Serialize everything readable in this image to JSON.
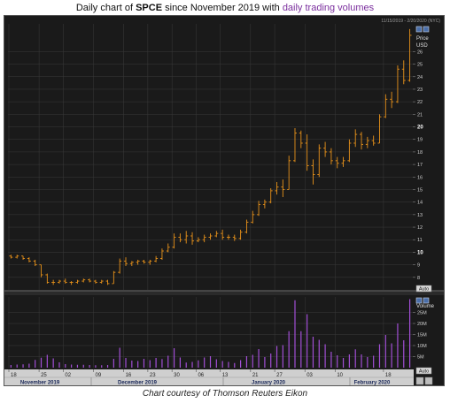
{
  "header": {
    "title_prefix": "Daily chart of",
    "ticker": "SPCE",
    "title_middle": "since November 2019 with",
    "title_volume": "daily trading volumes"
  },
  "date_range": "11/15/2019 - 2/20/2020 (NYC)",
  "price_label": "Price",
  "currency_label": "USD",
  "volume_label": "Volume",
  "auto_button": "Auto",
  "caption": "Chart courtesy of Thomson Reuters Eikon",
  "colors": {
    "price": "#e8921a",
    "volume": "#a24fd6",
    "background": "#1a1a1a",
    "grid": "#3a3a3a"
  },
  "chart_data": {
    "type": "bar",
    "price_axis": {
      "min": 7,
      "max": 28,
      "ticks": [
        8,
        9,
        10,
        11,
        12,
        13,
        14,
        15,
        16,
        17,
        18,
        19,
        20,
        21,
        22,
        23,
        24,
        25,
        26
      ],
      "bold_ticks": [
        10,
        20
      ]
    },
    "volume_axis": {
      "min": 0,
      "max": 32,
      "ticks": [
        "5M",
        "10M",
        "15M",
        "20M",
        "25M"
      ],
      "tick_values": [
        5,
        10,
        15,
        20,
        25
      ],
      "unit": "M"
    },
    "x_tick_labels": [
      "18",
      "25",
      "02",
      "09",
      "16",
      "23",
      "30",
      "06",
      "13",
      "21",
      "27",
      "03",
      "10",
      "18"
    ],
    "month_labels": [
      "November 2019",
      "December 2019",
      "January 2020",
      "February 2020"
    ],
    "ohlc": [
      {
        "o": 9.7,
        "h": 9.8,
        "l": 9.5,
        "c": 9.6
      },
      {
        "o": 9.6,
        "h": 9.8,
        "l": 9.5,
        "c": 9.7
      },
      {
        "o": 9.7,
        "h": 9.7,
        "l": 9.4,
        "c": 9.5
      },
      {
        "o": 9.5,
        "h": 9.6,
        "l": 9.2,
        "c": 9.3
      },
      {
        "o": 9.3,
        "h": 9.4,
        "l": 8.9,
        "c": 9.0
      },
      {
        "o": 9.0,
        "h": 9.0,
        "l": 8.0,
        "c": 8.2
      },
      {
        "o": 8.2,
        "h": 8.3,
        "l": 7.5,
        "c": 7.6
      },
      {
        "o": 7.6,
        "h": 7.8,
        "l": 7.4,
        "c": 7.6
      },
      {
        "o": 7.6,
        "h": 7.8,
        "l": 7.5,
        "c": 7.7
      },
      {
        "o": 7.7,
        "h": 7.9,
        "l": 7.5,
        "c": 7.6
      },
      {
        "o": 7.6,
        "h": 7.7,
        "l": 7.4,
        "c": 7.6
      },
      {
        "o": 7.6,
        "h": 7.8,
        "l": 7.5,
        "c": 7.7
      },
      {
        "o": 7.7,
        "h": 7.9,
        "l": 7.6,
        "c": 7.8
      },
      {
        "o": 7.8,
        "h": 7.9,
        "l": 7.6,
        "c": 7.7
      },
      {
        "o": 7.7,
        "h": 7.8,
        "l": 7.5,
        "c": 7.6
      },
      {
        "o": 7.6,
        "h": 7.8,
        "l": 7.5,
        "c": 7.7
      },
      {
        "o": 7.7,
        "h": 7.8,
        "l": 7.4,
        "c": 7.5
      },
      {
        "o": 7.5,
        "h": 8.5,
        "l": 7.5,
        "c": 8.4
      },
      {
        "o": 8.4,
        "h": 9.5,
        "l": 8.3,
        "c": 9.3
      },
      {
        "o": 9.3,
        "h": 9.6,
        "l": 8.9,
        "c": 9.1
      },
      {
        "o": 9.1,
        "h": 9.3,
        "l": 8.9,
        "c": 9.2
      },
      {
        "o": 9.2,
        "h": 9.4,
        "l": 9.0,
        "c": 9.3
      },
      {
        "o": 9.3,
        "h": 9.4,
        "l": 9.1,
        "c": 9.2
      },
      {
        "o": 9.2,
        "h": 9.4,
        "l": 9.0,
        "c": 9.3
      },
      {
        "o": 9.3,
        "h": 9.7,
        "l": 9.2,
        "c": 9.5
      },
      {
        "o": 9.5,
        "h": 10.3,
        "l": 9.4,
        "c": 10.1
      },
      {
        "o": 10.1,
        "h": 10.7,
        "l": 10.0,
        "c": 10.4
      },
      {
        "o": 10.4,
        "h": 11.5,
        "l": 10.3,
        "c": 11.2
      },
      {
        "o": 11.2,
        "h": 11.5,
        "l": 10.8,
        "c": 11.0
      },
      {
        "o": 11.0,
        "h": 11.7,
        "l": 10.7,
        "c": 11.3
      },
      {
        "o": 11.3,
        "h": 11.6,
        "l": 10.6,
        "c": 10.9
      },
      {
        "o": 10.9,
        "h": 11.2,
        "l": 10.8,
        "c": 11.0
      },
      {
        "o": 11.0,
        "h": 11.4,
        "l": 10.8,
        "c": 11.2
      },
      {
        "o": 11.2,
        "h": 11.5,
        "l": 11.0,
        "c": 11.3
      },
      {
        "o": 11.3,
        "h": 11.7,
        "l": 11.2,
        "c": 11.5
      },
      {
        "o": 11.5,
        "h": 11.8,
        "l": 11.0,
        "c": 11.2
      },
      {
        "o": 11.2,
        "h": 11.4,
        "l": 11.0,
        "c": 11.2
      },
      {
        "o": 11.2,
        "h": 11.4,
        "l": 10.9,
        "c": 11.1
      },
      {
        "o": 11.1,
        "h": 11.8,
        "l": 11.0,
        "c": 11.6
      },
      {
        "o": 11.6,
        "h": 12.6,
        "l": 11.5,
        "c": 12.4
      },
      {
        "o": 12.4,
        "h": 13.3,
        "l": 12.3,
        "c": 13.0
      },
      {
        "o": 13.0,
        "h": 14.1,
        "l": 12.9,
        "c": 13.8
      },
      {
        "o": 13.8,
        "h": 14.2,
        "l": 13.5,
        "c": 14.0
      },
      {
        "o": 14.0,
        "h": 15.1,
        "l": 13.9,
        "c": 14.9
      },
      {
        "o": 14.9,
        "h": 15.6,
        "l": 14.6,
        "c": 15.2
      },
      {
        "o": 15.2,
        "h": 15.8,
        "l": 14.4,
        "c": 15.0
      },
      {
        "o": 15.0,
        "h": 17.7,
        "l": 15.0,
        "c": 17.3
      },
      {
        "o": 17.3,
        "h": 19.9,
        "l": 17.2,
        "c": 19.5
      },
      {
        "o": 19.5,
        "h": 19.7,
        "l": 18.3,
        "c": 18.7
      },
      {
        "o": 18.7,
        "h": 19.4,
        "l": 16.5,
        "c": 16.9
      },
      {
        "o": 16.9,
        "h": 17.4,
        "l": 15.4,
        "c": 16.2
      },
      {
        "o": 16.2,
        "h": 18.6,
        "l": 16.0,
        "c": 18.3
      },
      {
        "o": 18.3,
        "h": 18.8,
        "l": 17.6,
        "c": 18.0
      },
      {
        "o": 18.0,
        "h": 18.3,
        "l": 17.0,
        "c": 17.3
      },
      {
        "o": 17.3,
        "h": 17.6,
        "l": 16.7,
        "c": 17.1
      },
      {
        "o": 17.1,
        "h": 17.6,
        "l": 16.8,
        "c": 17.3
      },
      {
        "o": 17.3,
        "h": 19.0,
        "l": 17.2,
        "c": 18.7
      },
      {
        "o": 18.7,
        "h": 19.8,
        "l": 18.4,
        "c": 19.4
      },
      {
        "o": 19.4,
        "h": 19.6,
        "l": 18.2,
        "c": 18.6
      },
      {
        "o": 18.6,
        "h": 19.2,
        "l": 18.3,
        "c": 18.9
      },
      {
        "o": 18.9,
        "h": 19.3,
        "l": 18.5,
        "c": 18.7
      },
      {
        "o": 18.7,
        "h": 21.0,
        "l": 18.7,
        "c": 20.8
      },
      {
        "o": 20.8,
        "h": 22.6,
        "l": 20.7,
        "c": 22.2
      },
      {
        "o": 22.2,
        "h": 22.8,
        "l": 21.5,
        "c": 22.0
      },
      {
        "o": 22.0,
        "h": 24.9,
        "l": 21.9,
        "c": 24.6
      },
      {
        "o": 24.6,
        "h": 25.3,
        "l": 23.4,
        "c": 23.7
      },
      {
        "o": 23.7,
        "h": 27.8,
        "l": 23.6,
        "c": 27.3
      }
    ],
    "volume": [
      1.2,
      1.4,
      1.5,
      1.8,
      3.5,
      4.5,
      5.8,
      4.2,
      2.4,
      1.6,
      1.4,
      1.3,
      1.3,
      1.2,
      1.1,
      1.1,
      1.2,
      4.0,
      9.0,
      4.4,
      3.2,
      3.0,
      4.0,
      3.4,
      4.4,
      3.9,
      5.4,
      8.8,
      4.6,
      2.3,
      2.6,
      3.3,
      4.6,
      5.2,
      3.8,
      3.0,
      2.6,
      2.1,
      3.4,
      5.2,
      5.8,
      8.4,
      4.8,
      6.4,
      9.8,
      10.2,
      16.5,
      30.5,
      16.5,
      24.2,
      14.0,
      12.6,
      10.6,
      7.2,
      5.6,
      4.4,
      6.0,
      8.3,
      6.0,
      4.8,
      5.4,
      10.6,
      14.8,
      11.0,
      20.0,
      12.4,
      31.0
    ]
  }
}
